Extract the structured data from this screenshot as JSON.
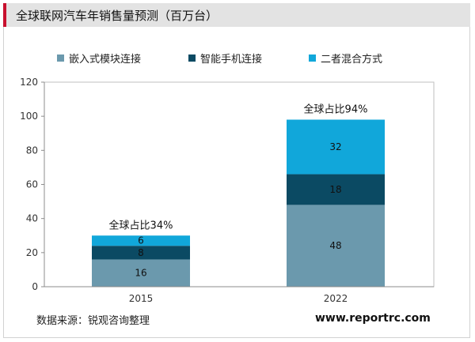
{
  "title": "全球联网汽车年销售量预测（百万台）",
  "source": "数据来源：锐观咨询整理",
  "website": "www.reportrc.com",
  "colors": {
    "embedded": "#6b99ad",
    "smartphone": "#0b4a63",
    "hybrid": "#11a7da",
    "title_bar": "#e3e3e3",
    "accent": "#c8102e"
  },
  "chart_data": {
    "type": "bar",
    "stacked": true,
    "categories": [
      "2015",
      "2022"
    ],
    "series": [
      {
        "name": "嵌入式模块连接",
        "values": [
          16,
          48
        ],
        "color": "#6b99ad"
      },
      {
        "name": "智能手机连接",
        "values": [
          8,
          18
        ],
        "color": "#0b4a63"
      },
      {
        "name": "二者混合方式",
        "values": [
          6,
          32
        ],
        "color": "#11a7da"
      }
    ],
    "annotations": [
      "全球占比34%",
      "全球占比94%"
    ],
    "ylim": [
      0,
      120
    ],
    "yticks": [
      0,
      20,
      40,
      60,
      80,
      100,
      120
    ],
    "grid": false,
    "legend": "top"
  }
}
